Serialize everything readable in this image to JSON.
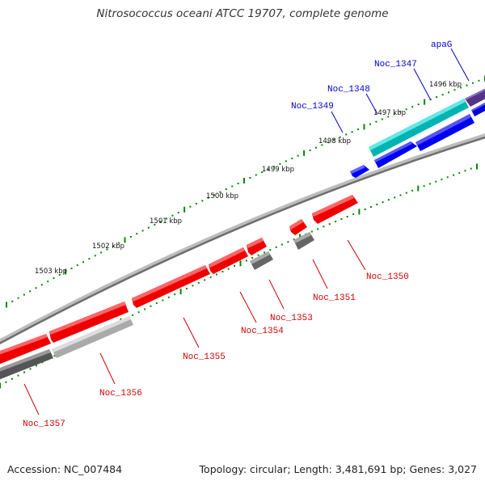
{
  "title": "Nitrosococcus oceani ATCC 19707, complete genome",
  "footer": {
    "accession_label": "Accession:",
    "accession": "NC_007484",
    "topology_label": "Topology:",
    "topology": "circular",
    "length_label": "Length:",
    "length": "3,481,691 bp",
    "genes_label": "Genes:",
    "genes": "3,027"
  },
  "colors": {
    "forward_gene": "#0000ff",
    "reverse_gene": "#ff0000",
    "rrna_like": "#00bbbb",
    "purple_gene": "#553388",
    "pseudo_gray": "#666666",
    "light_gray": "#bbbbbb",
    "backbone": "#777777",
    "ticks": "#008800"
  },
  "scale": {
    "unit": "kbp",
    "ticks": [
      {
        "kbp": 1496,
        "label": "1496 kbp"
      },
      {
        "kbp": 1497,
        "label": "1497 kbp"
      },
      {
        "kbp": 1498,
        "label": "1498 kbp"
      },
      {
        "kbp": 1499,
        "label": "1499 kbp"
      },
      {
        "kbp": 1500,
        "label": "1500 kbp"
      },
      {
        "kbp": 1501,
        "label": "1501 kbp"
      },
      {
        "kbp": 1502,
        "label": "1502 kbp"
      },
      {
        "kbp": 1503,
        "label": "1503 kbp"
      }
    ]
  },
  "genes_forward": [
    {
      "name": "apaG",
      "strand": "+"
    },
    {
      "name": "Noc_1347",
      "strand": "+"
    },
    {
      "name": "Noc_1348",
      "strand": "+"
    },
    {
      "name": "Noc_1349",
      "strand": "+"
    }
  ],
  "genes_reverse": [
    {
      "name": "Noc_1350",
      "strand": "-"
    },
    {
      "name": "Noc_1351",
      "strand": "-"
    },
    {
      "name": "Noc_1353",
      "strand": "-"
    },
    {
      "name": "Noc_1354",
      "strand": "-"
    },
    {
      "name": "Noc_1355",
      "strand": "-"
    },
    {
      "name": "Noc_1356",
      "strand": "-"
    },
    {
      "name": "Noc_1357",
      "strand": "-"
    }
  ]
}
